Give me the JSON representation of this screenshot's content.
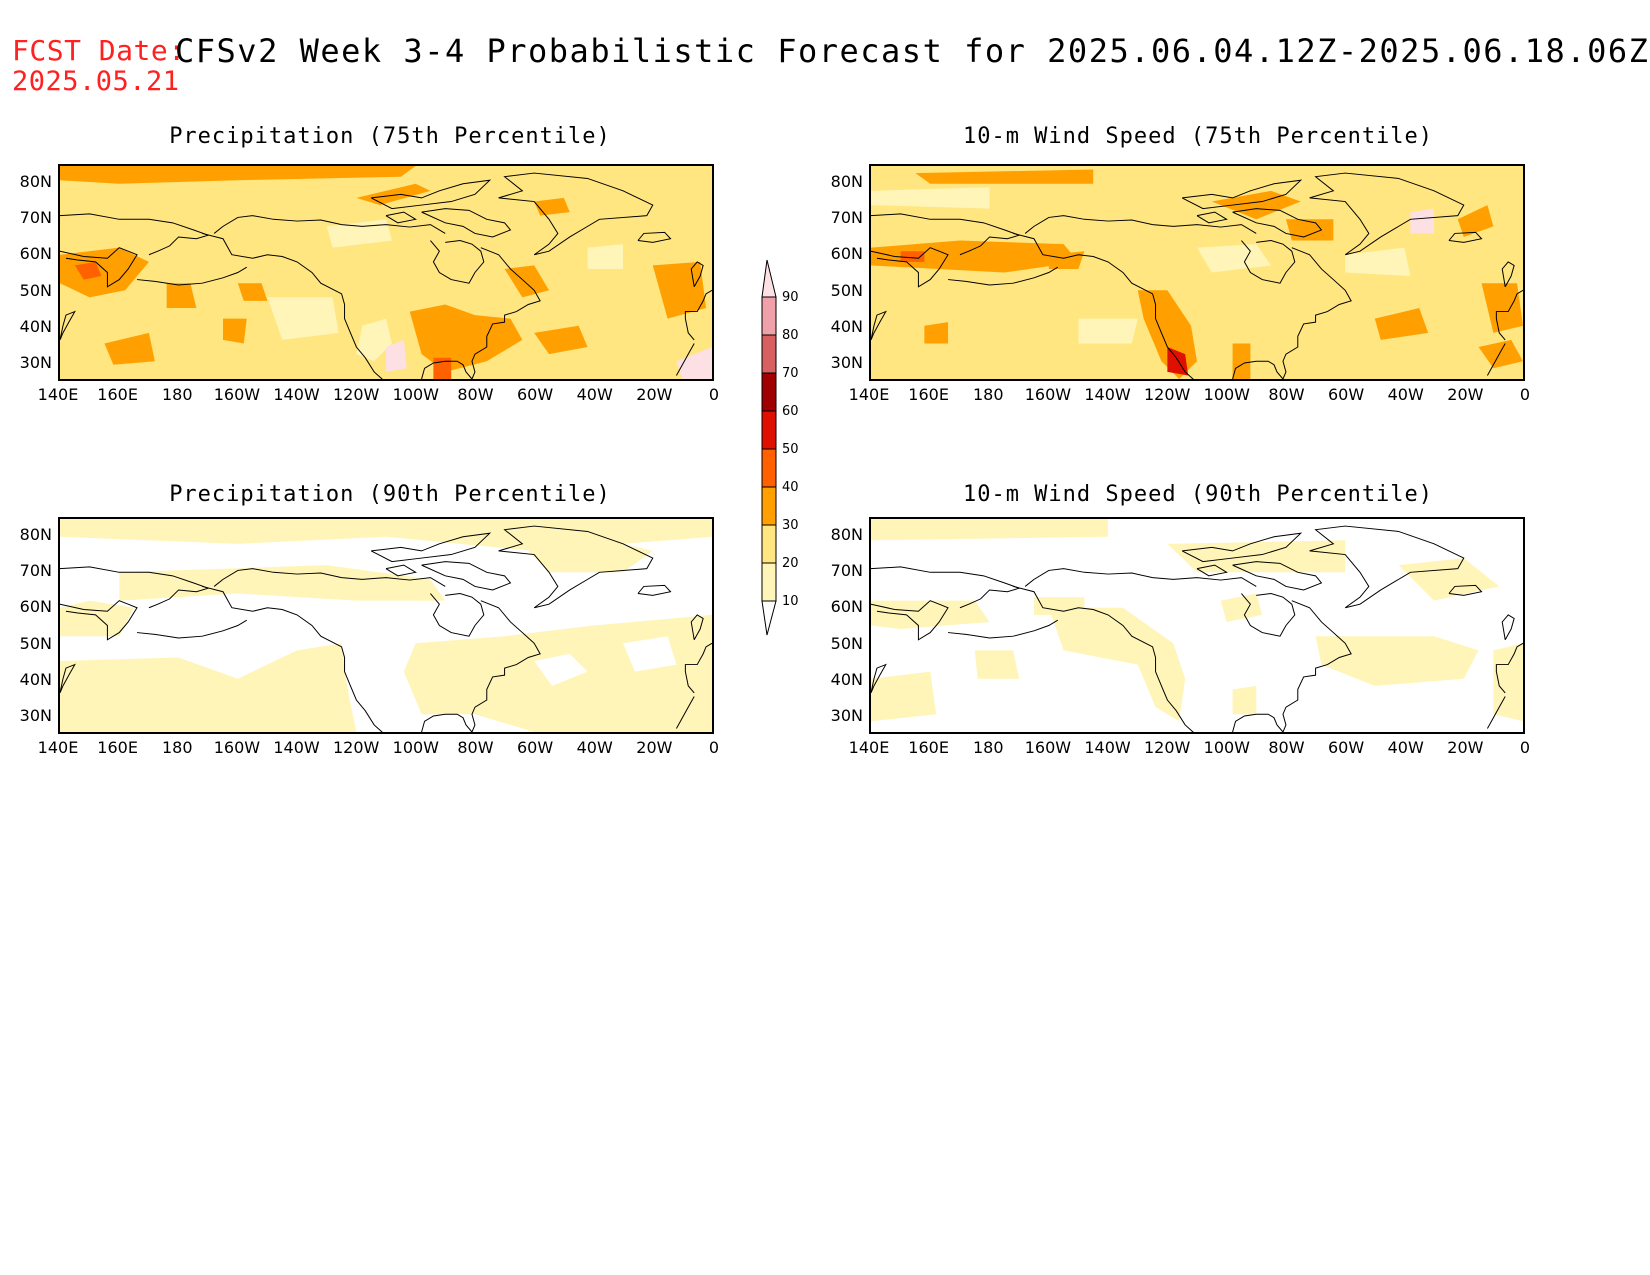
{
  "header": {
    "fcst_label": "FCST Date:",
    "fcst_date": "2025.05.21",
    "title": "CFSv2 Week 3-4 Probabilistic Forecast for 2025.06.04.12Z-2025.06.18.06Z"
  },
  "colors": {
    "c10_20": "#fff5b8",
    "c20_30": "#ffe680",
    "c30_40": "#ffa000",
    "c40_50": "#ff6000",
    "c50_60": "#e01000",
    "c60_70": "#a00000",
    "c70_80": "#d86060",
    "c80_90": "#f0a0a8",
    "c90": "#fde0e4"
  },
  "panels": [
    {
      "title": "Precipitation (75th Percentile)"
    },
    {
      "title": "10-m Wind Speed (75th Percentile)"
    },
    {
      "title": "Precipitation (90th Percentile)"
    },
    {
      "title": "10-m Wind Speed (90th Percentile)"
    }
  ],
  "axes": {
    "lat_labels": [
      "80N",
      "70N",
      "60N",
      "50N",
      "40N",
      "30N"
    ],
    "lon_labels": [
      "140E",
      "160E",
      "180",
      "160W",
      "140W",
      "120W",
      "100W",
      "80W",
      "60W",
      "40W",
      "20W",
      "0"
    ]
  },
  "colorbar": {
    "labels": [
      "90",
      "80",
      "70",
      "60",
      "50",
      "40",
      "30",
      "20",
      "10"
    ]
  }
}
